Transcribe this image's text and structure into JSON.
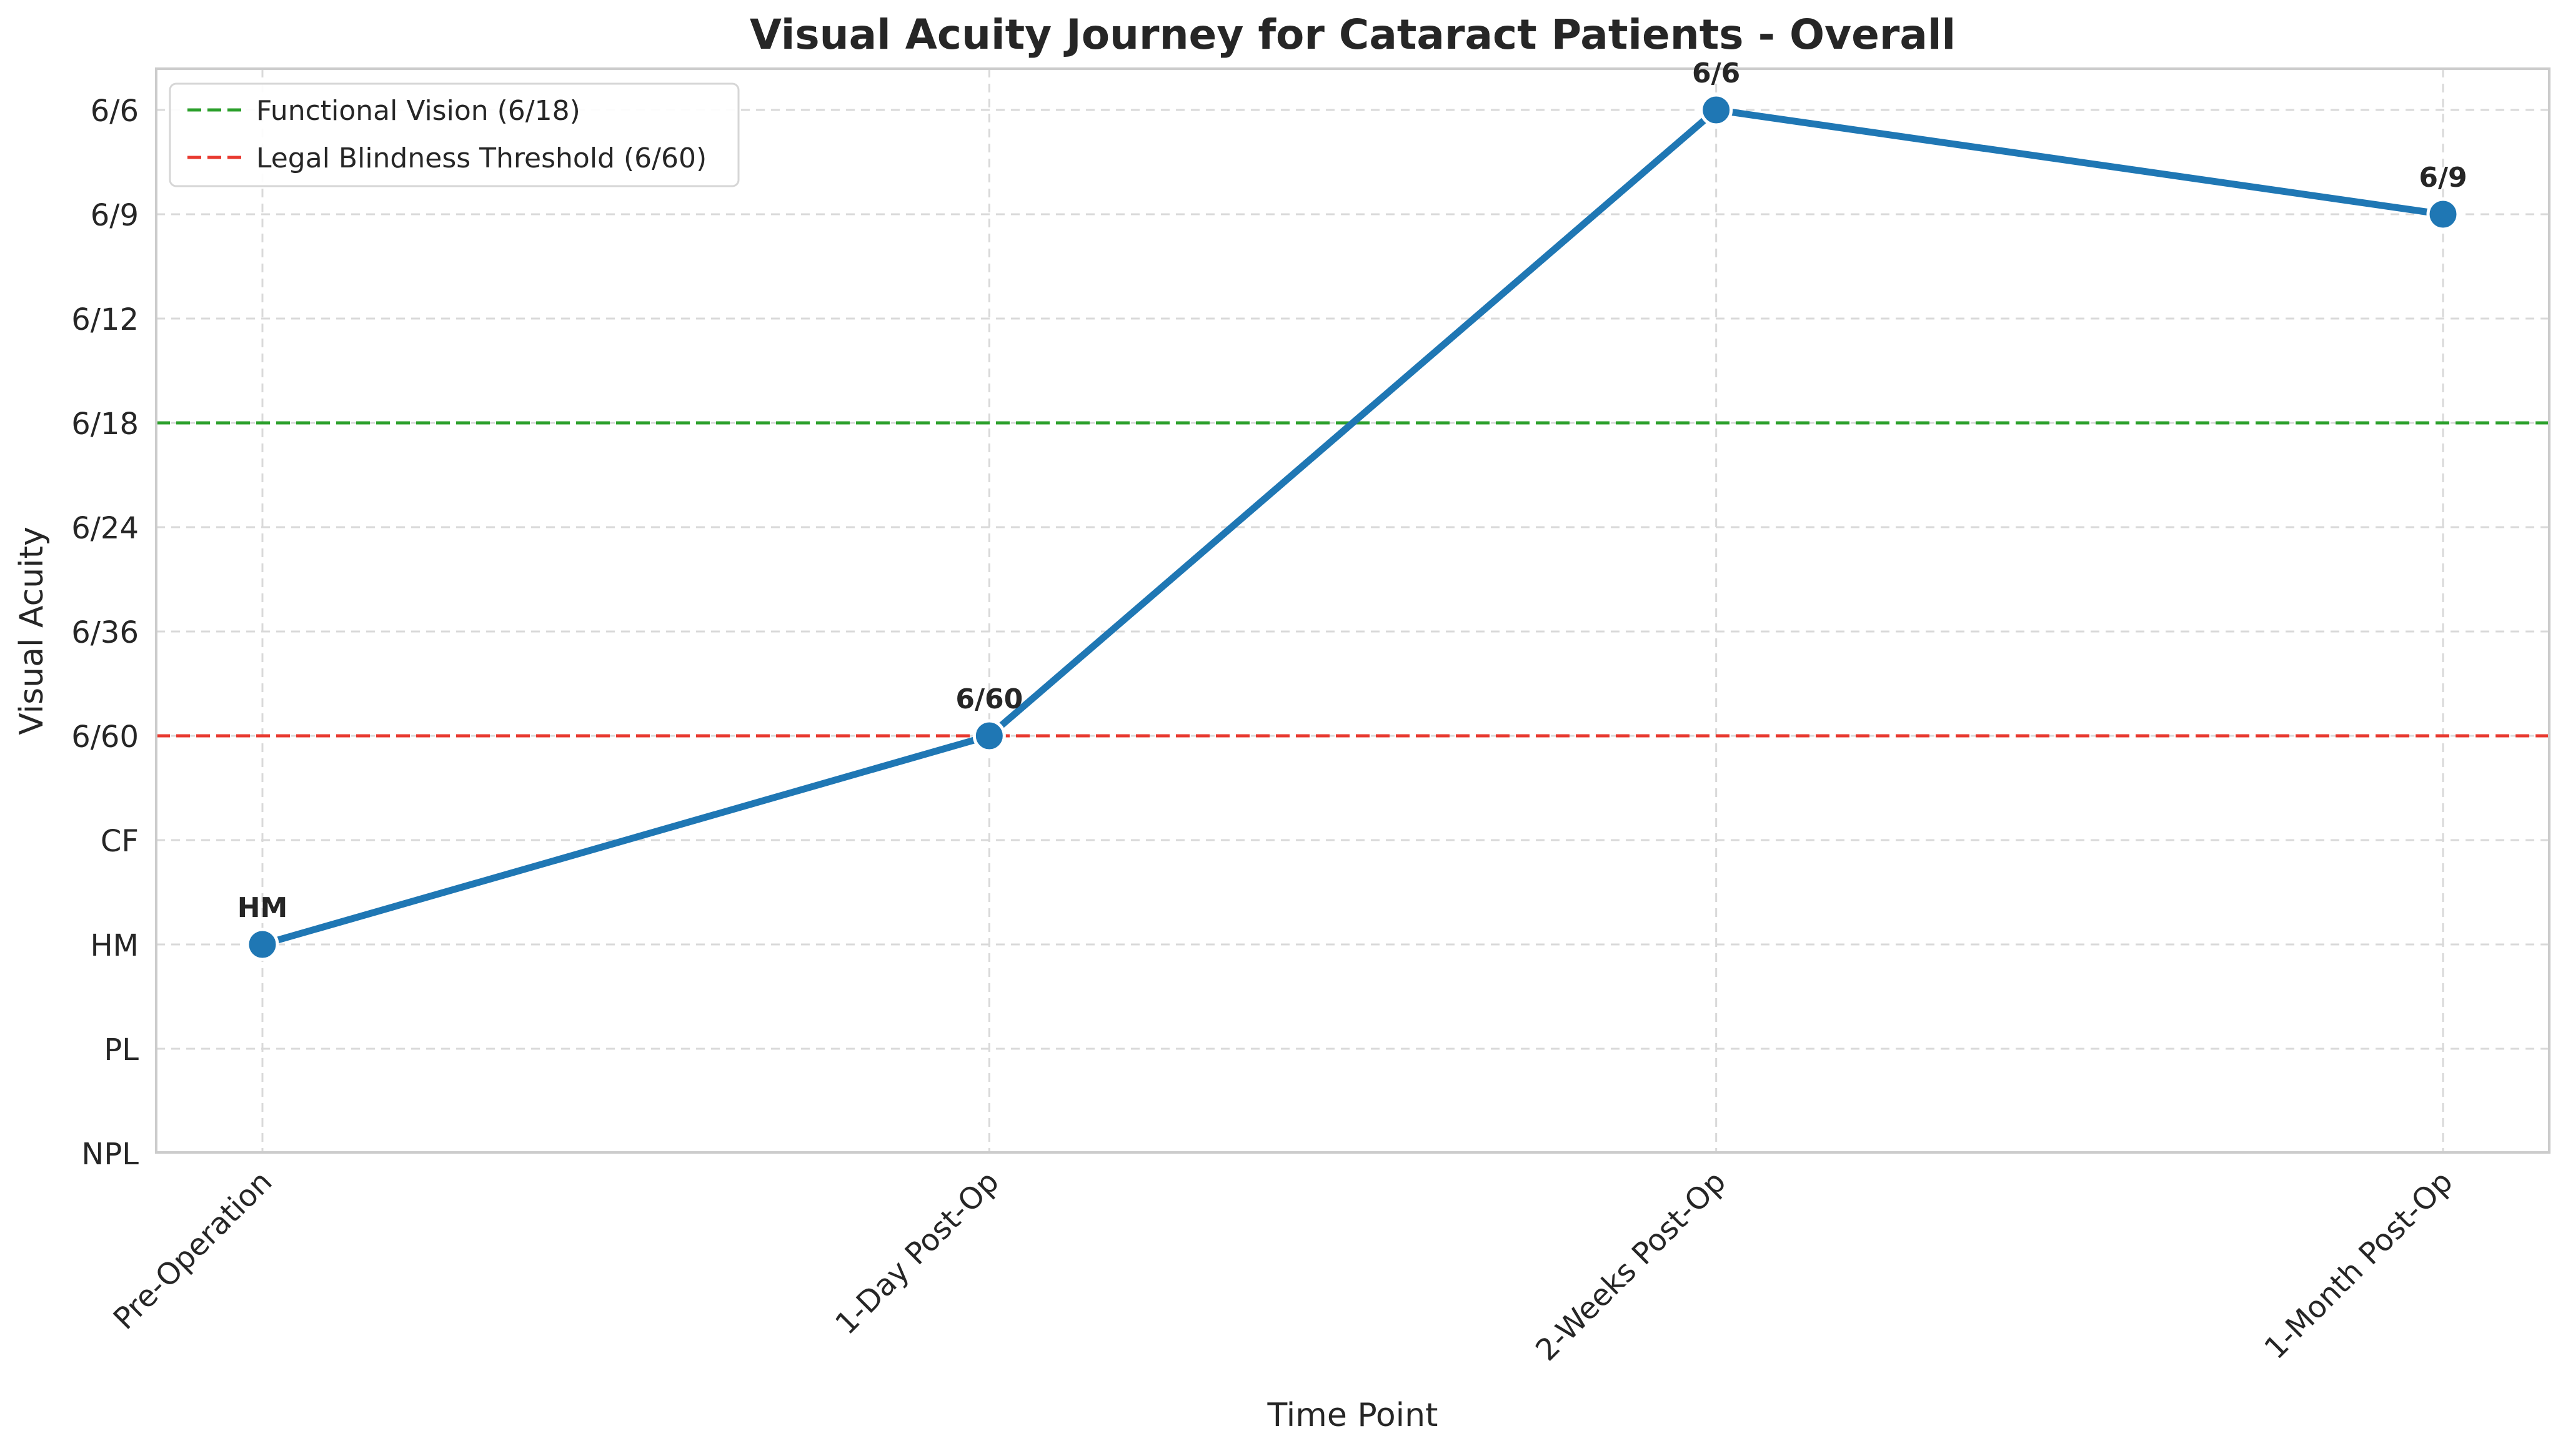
{
  "chart_data": {
    "type": "line",
    "title": "Visual Acuity Journey for Cataract Patients - Overall",
    "xlabel": "Time Point",
    "ylabel": "Visual Acuity",
    "categories": [
      "Pre-Operation",
      "1-Day Post-Op",
      "2-Weeks Post-Op",
      "1-Month Post-Op"
    ],
    "y_levels": [
      "NPL",
      "PL",
      "HM",
      "CF",
      "6/60",
      "6/36",
      "6/24",
      "6/18",
      "6/12",
      "6/9",
      "6/6"
    ],
    "series": [
      {
        "values": [
          "HM",
          "6/60",
          "6/6",
          "6/9"
        ],
        "color": "#1f77b4"
      }
    ],
    "data_labels": [
      "HM",
      "6/60",
      "6/6",
      "6/9"
    ],
    "reference_lines": [
      {
        "label": "Functional Vision (6/18)",
        "value": "6/18",
        "color": "#2ca02c"
      },
      {
        "label": "Legal Blindness Threshold (6/60)",
        "value": "6/60",
        "color": "#e8392f"
      }
    ],
    "grid": true,
    "legend_position": "top-left"
  }
}
